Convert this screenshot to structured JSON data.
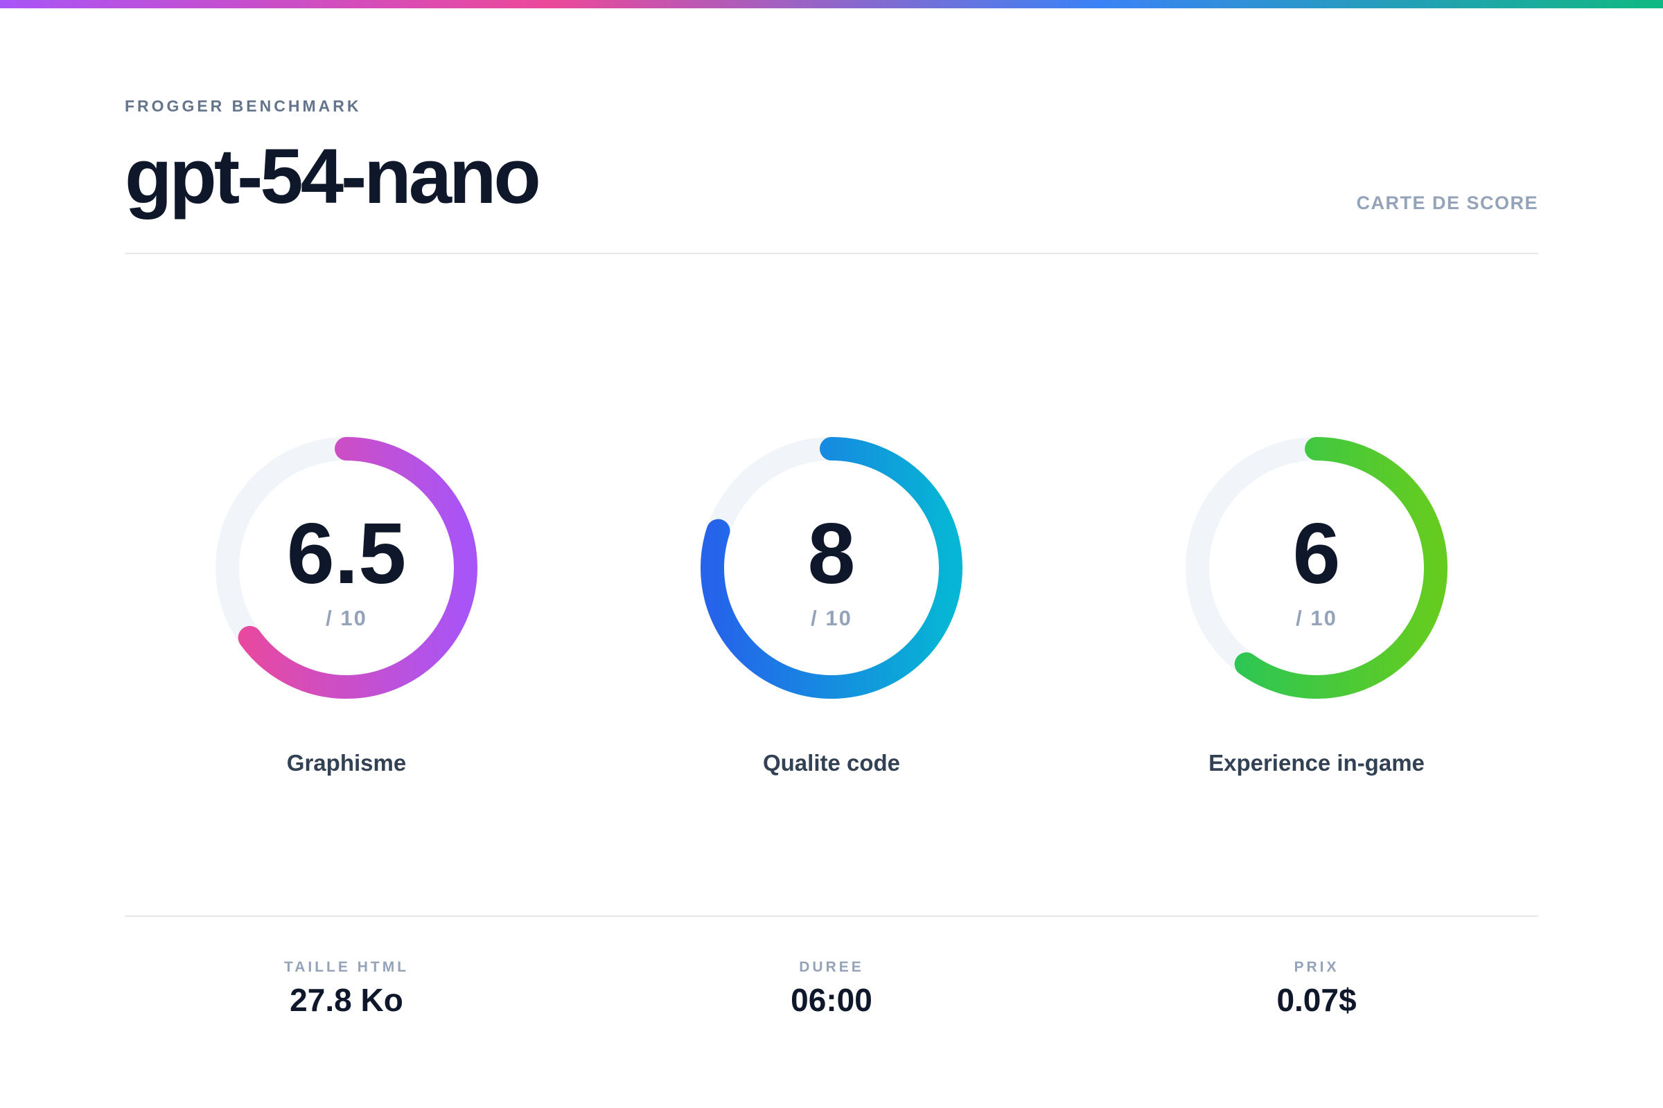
{
  "header": {
    "eyebrow": "FROGGER BENCHMARK",
    "title": "gpt-54-nano",
    "scorecard_label": "CARTE DE SCORE"
  },
  "scores": [
    {
      "label": "Graphisme",
      "value": "6.5",
      "max": "/ 10",
      "fraction": 0.65,
      "color_start": "#ec4899",
      "color_end": "#a855f7"
    },
    {
      "label": "Qualite code",
      "value": "8",
      "max": "/ 10",
      "fraction": 0.8,
      "color_start": "#2563eb",
      "color_end": "#06b6d4"
    },
    {
      "label": "Experience in-game",
      "value": "6",
      "max": "/ 10",
      "fraction": 0.6,
      "color_start": "#22c55e",
      "color_end": "#65cc1f"
    }
  ],
  "stats": [
    {
      "label": "TAILLE HTML",
      "value": "27.8 Ko"
    },
    {
      "label": "DUREE",
      "value": "06:00"
    },
    {
      "label": "PRIX",
      "value": "0.07$"
    }
  ],
  "colors": {
    "track": "#f1f5f9",
    "text_dark": "#0f172a",
    "text_muted": "#94a3b8"
  }
}
